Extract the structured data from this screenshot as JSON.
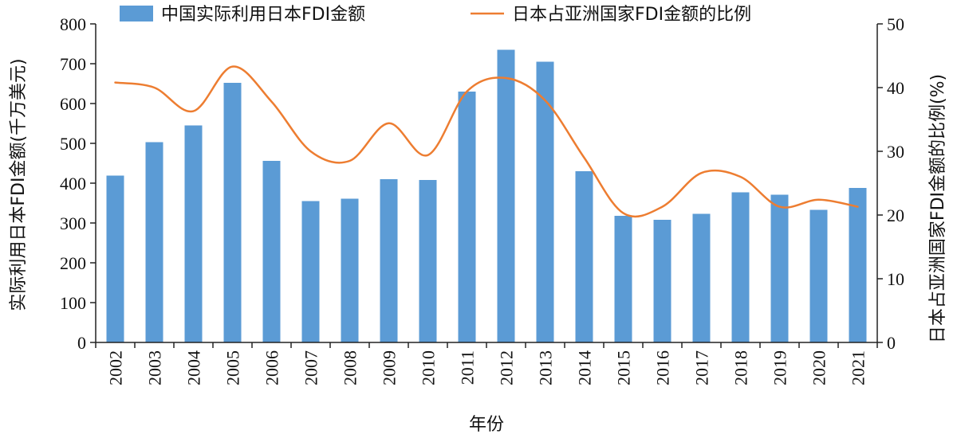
{
  "chart_data": {
    "type": "bar+line",
    "categories": [
      "2002",
      "2003",
      "2004",
      "2005",
      "2006",
      "2007",
      "2008",
      "2009",
      "2010",
      "2011",
      "2012",
      "2013",
      "2014",
      "2015",
      "2016",
      "2017",
      "2018",
      "2019",
      "2020",
      "2021"
    ],
    "xlabel": "年份",
    "ylabel_left": "实际利用日本FDI金额(千万美元)",
    "ylabel_right": "日本占亚洲国家FDI金额的比例(%)",
    "ylim_left": [
      0,
      800
    ],
    "ylim_right": [
      0,
      50
    ],
    "yticks_left": [
      "0",
      "100",
      "200",
      "300",
      "400",
      "500",
      "600",
      "700",
      "800"
    ],
    "yticks_right": [
      "0",
      "10",
      "20",
      "30",
      "40",
      "50"
    ],
    "grid": false,
    "legend_position": "top",
    "series": [
      {
        "name": "中国实际利用日本FDI金额",
        "kind": "bar",
        "axis": "left",
        "color": "#5B9BD5",
        "values": [
          419,
          503,
          545,
          652,
          456,
          355,
          361,
          410,
          408,
          630,
          735,
          705,
          430,
          318,
          308,
          323,
          377,
          371,
          333,
          388
        ]
      },
      {
        "name": "日本占亚洲国家FDI金额的比例",
        "kind": "line",
        "axis": "right",
        "color": "#ED7D31",
        "values": [
          40.8,
          40.0,
          36.3,
          43.3,
          37.8,
          30.0,
          28.5,
          34.4,
          29.4,
          39.4,
          41.5,
          38.0,
          29.0,
          20.3,
          21.3,
          26.6,
          26.0,
          21.3,
          22.4,
          21.3
        ]
      }
    ]
  }
}
